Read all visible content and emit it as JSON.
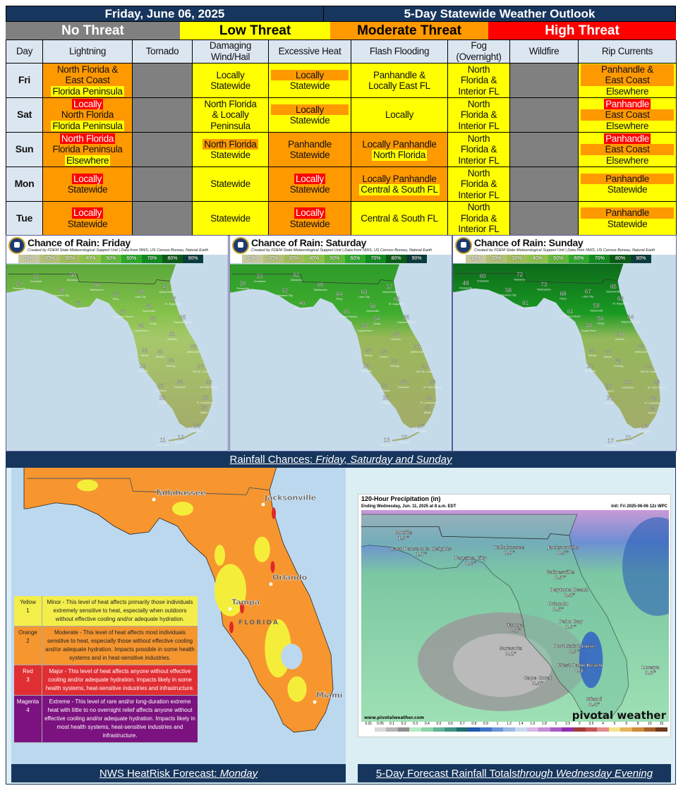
{
  "header": {
    "date": "Friday, June 06, 2025",
    "title": "5-Day Statewide Weather Outlook"
  },
  "threat_levels": [
    {
      "label": "No Threat",
      "color": "#808080",
      "text_color": "#ffffff"
    },
    {
      "label": "Low Threat",
      "color": "#ffff00",
      "text_color": "#000000"
    },
    {
      "label": "Moderate Threat",
      "color": "#ff9900",
      "text_color": "#000000"
    },
    {
      "label": "High Threat",
      "color": "#ff0000",
      "text_color": "#ffffff"
    }
  ],
  "columns": [
    "Day",
    "Lightning",
    "Tornado",
    "Damaging Wind/Hail",
    "Excessive Heat",
    "Flash Flooding",
    "Fog (Overnight)",
    "Wildfire",
    "Rip Currents"
  ],
  "rows": [
    {
      "day": "Fri",
      "cells": [
        {
          "bg": "O",
          "lines": [
            {
              "t": "North Florida &"
            },
            {
              "t": "East Coast"
            },
            {
              "t": "Florida Peninsula",
              "hl": "Y"
            }
          ]
        },
        {
          "bg": "G",
          "lines": []
        },
        {
          "bg": "Y",
          "lines": [
            {
              "t": "Locally"
            },
            {
              "t": "Statewide"
            }
          ]
        },
        {
          "bg": "Y",
          "lines": [
            {
              "t": "Locally",
              "hl": "O",
              "block": true
            },
            {
              "t": "Statewide"
            }
          ]
        },
        {
          "bg": "Y",
          "lines": [
            {
              "t": "Panhandle &"
            },
            {
              "t": "Locally East FL"
            }
          ]
        },
        {
          "bg": "Y",
          "lines": [
            {
              "t": "North"
            },
            {
              "t": "Florida &"
            },
            {
              "t": "Interior FL"
            }
          ]
        },
        {
          "bg": "G",
          "lines": []
        },
        {
          "bg": "Y",
          "lines": [
            {
              "t": "Panhandle &",
              "hl": "O",
              "block": true
            },
            {
              "t": "East Coast",
              "hl": "O",
              "block": true
            },
            {
              "t": "Elsewhere"
            }
          ]
        }
      ]
    },
    {
      "day": "Sat",
      "cells": [
        {
          "bg": "O",
          "lines": [
            {
              "t": "Locally",
              "hl": "R"
            },
            {
              "t": "North Florida"
            },
            {
              "t": "Florida Peninsula",
              "hl": "Y"
            }
          ]
        },
        {
          "bg": "G",
          "lines": []
        },
        {
          "bg": "Y",
          "lines": [
            {
              "t": "North Florida"
            },
            {
              "t": "& Locally"
            },
            {
              "t": "Peninsula"
            }
          ]
        },
        {
          "bg": "Y",
          "lines": [
            {
              "t": "Locally",
              "hl": "O",
              "block": true
            },
            {
              "t": "Statewide"
            }
          ]
        },
        {
          "bg": "Y",
          "lines": [
            {
              "t": "Locally"
            }
          ]
        },
        {
          "bg": "Y",
          "lines": [
            {
              "t": "North"
            },
            {
              "t": "Florida &"
            },
            {
              "t": "Interior FL"
            }
          ]
        },
        {
          "bg": "G",
          "lines": []
        },
        {
          "bg": "Y",
          "lines": [
            {
              "t": "Panhandle",
              "hl": "R"
            },
            {
              "t": "East Coast",
              "hl": "O",
              "block": true
            },
            {
              "t": "Elsewhere"
            }
          ]
        }
      ]
    },
    {
      "day": "Sun",
      "cells": [
        {
          "bg": "O",
          "lines": [
            {
              "t": "North Florida",
              "hl": "R"
            },
            {
              "t": "Florida Peninsula"
            },
            {
              "t": "Elsewhere",
              "hl": "Y"
            }
          ]
        },
        {
          "bg": "G",
          "lines": []
        },
        {
          "bg": "Y",
          "lines": [
            {
              "t": "North Florida",
              "hl": "O"
            },
            {
              "t": "Statewide"
            }
          ]
        },
        {
          "bg": "O",
          "lines": [
            {
              "t": "Panhandle"
            },
            {
              "t": "Statewide"
            }
          ]
        },
        {
          "bg": "O",
          "lines": [
            {
              "t": "Locally Panhandle"
            },
            {
              "t": "North Florida",
              "hl": "Y"
            }
          ]
        },
        {
          "bg": "Y",
          "lines": [
            {
              "t": "North"
            },
            {
              "t": "Florida &"
            },
            {
              "t": "Interior FL"
            }
          ]
        },
        {
          "bg": "G",
          "lines": []
        },
        {
          "bg": "Y",
          "lines": [
            {
              "t": "Panhandle",
              "hl": "R"
            },
            {
              "t": "East Coast",
              "hl": "O",
              "block": true
            },
            {
              "t": "Elsewhere"
            }
          ]
        }
      ]
    },
    {
      "day": "Mon",
      "cells": [
        {
          "bg": "O",
          "lines": [
            {
              "t": "Locally",
              "hl": "R"
            },
            {
              "t": "Statewide"
            }
          ]
        },
        {
          "bg": "G",
          "lines": []
        },
        {
          "bg": "Y",
          "lines": [
            {
              "t": "Statewide"
            }
          ]
        },
        {
          "bg": "O",
          "lines": [
            {
              "t": "Locally",
              "hl": "R"
            },
            {
              "t": "Statewide"
            }
          ]
        },
        {
          "bg": "O",
          "lines": [
            {
              "t": "Locally Panhandle"
            },
            {
              "t": "Central & South FL",
              "hl": "Y"
            }
          ]
        },
        {
          "bg": "Y",
          "lines": [
            {
              "t": "North"
            },
            {
              "t": "Florida &"
            },
            {
              "t": "Interior FL"
            }
          ]
        },
        {
          "bg": "G",
          "lines": []
        },
        {
          "bg": "Y",
          "lines": [
            {
              "t": "Panhandle",
              "hl": "O",
              "block": true
            },
            {
              "t": "Statewide"
            }
          ]
        }
      ]
    },
    {
      "day": "Tue",
      "cells": [
        {
          "bg": "O",
          "lines": [
            {
              "t": "Locally",
              "hl": "R"
            },
            {
              "t": "Statewide"
            }
          ]
        },
        {
          "bg": "G",
          "lines": []
        },
        {
          "bg": "Y",
          "lines": [
            {
              "t": "Statewide"
            }
          ]
        },
        {
          "bg": "O",
          "lines": [
            {
              "t": "Locally",
              "hl": "R"
            },
            {
              "t": "Statewide"
            }
          ]
        },
        {
          "bg": "Y",
          "lines": [
            {
              "t": "Central & South FL"
            }
          ]
        },
        {
          "bg": "Y",
          "lines": [
            {
              "t": "North"
            },
            {
              "t": "Florida &"
            },
            {
              "t": "Interior FL"
            }
          ]
        },
        {
          "bg": "G",
          "lines": []
        },
        {
          "bg": "Y",
          "lines": [
            {
              "t": "Panhandle",
              "hl": "O",
              "block": true
            },
            {
              "t": "Statewide"
            }
          ]
        }
      ]
    }
  ],
  "palette": {
    "Y": "#ffff00",
    "O": "#ff9900",
    "R": "#ff0000",
    "G": "#808080"
  },
  "rain_maps": {
    "subtitle": "Created by FDEM State Meteorological Support Unit | Data from NWS, US Census Bureau, Natural Earth",
    "scale": [
      "10%",
      "20%",
      "30%",
      "40%",
      "50%",
      "60%",
      "70%",
      "80%",
      "90%"
    ],
    "scale_colors": [
      "#c8c8a0",
      "#b4c07a",
      "#a3bd5c",
      "#8fc24c",
      "#63b83a",
      "#2ea82a",
      "#118a1f",
      "#0b5c17",
      "#0a3b3a"
    ],
    "cities": [
      "Pensacola",
      "Crestview",
      "Marianna",
      "Tallahassee",
      "Panama City",
      "Apalachicola",
      "Perry",
      "Lake City",
      "Jacksonville",
      "St. Augustine",
      "Gainesville",
      "Horseshoe Beach",
      "Ocala",
      "Daytona Beach",
      "Crystal River",
      "Orlando",
      "Melbourne",
      "Tampa",
      "Bartow",
      "Sebring",
      "Sarasota",
      "Port St. Lucie",
      "Clewiston",
      "W. Palm Beach",
      "Ft. Myers",
      "Naples",
      "Ft. Lauderdale",
      "Miami",
      "Key Largo",
      "Marathon",
      "Key West"
    ],
    "days": [
      {
        "title": "Chance of Rain: Friday",
        "values": [
          24,
          32,
          50,
          66,
          30,
          51,
          35,
          39,
          41,
          47,
          34,
          48,
          35,
          46,
          34,
          41,
          38,
          24,
          31,
          33,
          22,
          27,
          36,
          22,
          26,
          28,
          16,
          15,
          14,
          12,
          11
        ]
      },
      {
        "title": "Chance of Rain: Saturday",
        "values": [
          20,
          33,
          62,
          69,
          52,
          46,
          64,
          63,
          57,
          62,
          56,
          45,
          54,
          35,
          23,
          28,
          30,
          23,
          23,
          23,
          23,
          29,
          38,
          23,
          23,
          25,
          22,
          21,
          17,
          15,
          13
        ]
      },
      {
        "title": "Chance of Rain: Sunday",
        "values": [
          48,
          60,
          72,
          73,
          58,
          61,
          68,
          67,
          65,
          63,
          59,
          61,
          56,
          44,
          34,
          40,
          33,
          24,
          33,
          35,
          21,
          32,
          44,
          28,
          28,
          31,
          30,
          29,
          23,
          21,
          17
        ]
      }
    ],
    "caption_main": "Rainfall Chances: ",
    "caption_em": "Friday, Saturday and Sunday"
  },
  "heat_risk": {
    "cities": [
      "Tallahassee",
      "Jacksonville",
      "Orlando",
      "Tampa",
      "Miami"
    ],
    "state_label": "FLORIDA",
    "legend": [
      {
        "level": "Yellow",
        "num": "1",
        "color": "#f4ee4a",
        "text_color": "#222",
        "desc": "Minor - This level of heat affects primarily those individuals extremely sensitive to heat, especially when outdoors without effective cooling and/or adequate hydration."
      },
      {
        "level": "Orange",
        "num": "2",
        "color": "#f5962f",
        "text_color": "#222",
        "desc": "Moderate - This level of heat affects most individuals sensitive to heat, especially those without effective cooling and/or adequate hydration. Impacts possible in some health systems and in heat-sensitive industries."
      },
      {
        "level": "Red",
        "num": "3",
        "color": "#e12e33",
        "text_color": "#fff",
        "desc": "Major - This level of heat affects anyone without effective cooling and/or adequate hydration. Impacts likely in some health systems, heat-sensitive industries and infrastructure."
      },
      {
        "level": "Magenta",
        "num": "4",
        "color": "#7c127f",
        "text_color": "#fff",
        "desc": "Extreme - This level of rare and/or long-duration extreme heat with little to no overnight relief affects anyone without effective cooling and/or adequate hydration. Impacts likely in most health systems, heat-sensitive industries and infrastructure."
      }
    ],
    "caption_main": "NWS HeatRisk Forecast: ",
    "caption_em": "Monday"
  },
  "precip": {
    "title": "120-Hour Precipitation (in)",
    "subtitle": "Ending Wednesday, Jun. 11, 2025 at 8 a.m. EDT",
    "init": "Init: Fri 2025-06-06 12z WPC",
    "points": [
      {
        "name": "Mobile",
        "value": "1.3\""
      },
      {
        "name": "East Pensacola Heights",
        "value": "1.7\""
      },
      {
        "name": "Panama City",
        "value": "0.8\""
      },
      {
        "name": "Tallahassee",
        "value": "0.9\""
      },
      {
        "name": "Jacksonville",
        "value": "0.5\""
      },
      {
        "name": "Gainesville",
        "value": "0.3\""
      },
      {
        "name": "Daytona Beach",
        "value": "0.4\""
      },
      {
        "name": "Orlando",
        "value": "0.5\""
      },
      {
        "name": "Palm Bay",
        "value": "0.3\""
      },
      {
        "name": "Tampa",
        "value": "0.2\""
      },
      {
        "name": "Sarasota",
        "value": "0.2\""
      },
      {
        "name": "Port Saint Lucie",
        "value": "0.3\""
      },
      {
        "name": "West Palm Beach",
        "value": "0.3\""
      },
      {
        "name": "Cape Coral",
        "value": "0.4\""
      },
      {
        "name": "Lucaya",
        "value": "0.3\""
      },
      {
        "name": "Miami",
        "value": "0.4\""
      }
    ],
    "watermark_url": "www.pivotalweather.com",
    "brand": "pivotal weather",
    "scale": [
      "0.01",
      "0.05",
      "0.1",
      "0.2",
      "0.3",
      "0.4",
      "0.5",
      "0.6",
      "0.7",
      "0.8",
      "0.9",
      "1",
      "1.2",
      "1.4",
      "1.6",
      "1.8",
      "2",
      "2.5",
      "3",
      "3.5",
      "4",
      "5",
      "6",
      "8",
      "10",
      "15"
    ],
    "scale_colors": [
      "#ffffff",
      "#d9d9d9",
      "#b5b5b5",
      "#8f8f8f",
      "#b3ebc2",
      "#8fd4a8",
      "#5fb592",
      "#3b9482",
      "#1f6e70",
      "#1e58b0",
      "#3f73c8",
      "#6a95d8",
      "#9ab8e6",
      "#c6d9f0",
      "#d7b9e3",
      "#c48dd6",
      "#ab5cc6",
      "#8f2fb0",
      "#a33a3a",
      "#c65555",
      "#e38c8c",
      "#f4e48a",
      "#e6b45e",
      "#d08a38",
      "#a8602a",
      "#6e3a1a"
    ],
    "caption_main": "5-Day Forecast Rainfall Totals ",
    "caption_em": "through Wednesday Evening"
  }
}
